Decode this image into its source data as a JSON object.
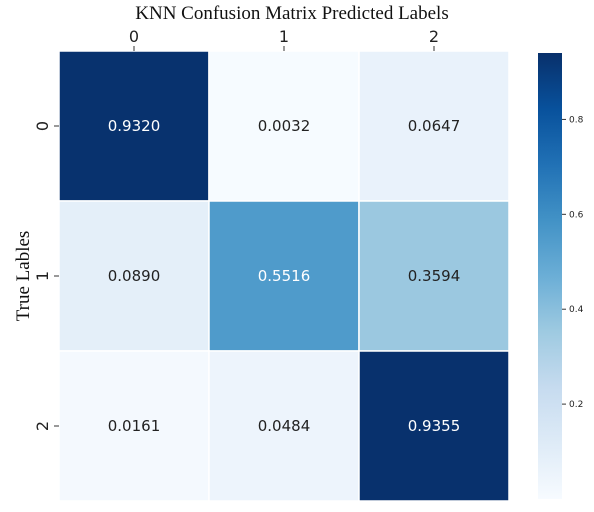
{
  "chart_data": {
    "type": "heatmap",
    "title": "KNN Confusion Matrix Predicted Labels",
    "ylabel": "True Lables",
    "x_categories": [
      "0",
      "1",
      "2"
    ],
    "y_categories": [
      "0",
      "1",
      "2"
    ],
    "values": [
      [
        0.932,
        0.0032,
        0.0647
      ],
      [
        0.089,
        0.5516,
        0.3594
      ],
      [
        0.0161,
        0.0484,
        0.9355
      ]
    ],
    "cell_labels": [
      [
        "0.9320",
        "0.0032",
        "0.0647"
      ],
      [
        "0.0890",
        "0.5516",
        "0.3594"
      ],
      [
        "0.0161",
        "0.0484",
        "0.9355"
      ]
    ],
    "colorbar": {
      "range": [
        0.0,
        0.94
      ],
      "ticks": [
        0.2,
        0.4,
        0.6,
        0.8
      ],
      "tick_labels": [
        "0.2",
        "0.4",
        "0.6",
        "0.8"
      ]
    },
    "colormap": [
      "#f7fbff",
      "#deebf7",
      "#c6dbef",
      "#9ecae1",
      "#6baed6",
      "#4292c6",
      "#2171b5",
      "#08519c",
      "#08306b"
    ],
    "x_axis_position": "top"
  }
}
